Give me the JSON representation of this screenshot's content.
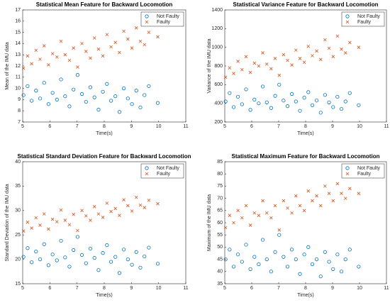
{
  "chart_data": [
    {
      "type": "scatter",
      "title": "Statistical Mean Feature for Backward Locomotion",
      "x_label": "Time(s)",
      "y_label": "Mean of the IMU data",
      "xlim": [
        5,
        11
      ],
      "xticks": [
        5,
        6,
        7,
        8,
        9,
        10,
        11
      ],
      "ylim": [
        7,
        17
      ],
      "yticks": [
        7,
        8,
        9,
        10,
        11,
        12,
        13,
        14,
        15,
        16,
        17
      ],
      "legend": "northeast",
      "series": [
        {
          "name": "Not Faulty",
          "color": "#0072BD",
          "marker": "o",
          "x": [
            5.03,
            5.18,
            5.33,
            5.49,
            5.64,
            5.79,
            5.95,
            6.1,
            6.26,
            6.41,
            6.56,
            6.72,
            6.87,
            7.02,
            7.18,
            7.33,
            7.49,
            7.64,
            7.79,
            7.95,
            8.1,
            8.25,
            8.41,
            8.56,
            8.72,
            8.87,
            9.02,
            9.18,
            9.33,
            9.48,
            9.64,
            9.97
          ],
          "values": [
            9.4,
            10.2,
            8.9,
            9.8,
            9.1,
            10.5,
            8.6,
            9.6,
            9.0,
            10.8,
            9.3,
            8.4,
            9.9,
            11.2,
            9.5,
            8.8,
            10.1,
            9.2,
            8.1,
            9.7,
            10.4,
            8.9,
            9.3,
            7.9,
            10.0,
            9.1,
            8.6,
            9.8,
            8.3,
            9.4,
            10.2,
            8.7
          ]
        },
        {
          "name": "Faulty",
          "color": "#D95319",
          "marker": "x",
          "x": [
            5.03,
            5.18,
            5.33,
            5.49,
            5.64,
            5.79,
            5.95,
            6.1,
            6.26,
            6.41,
            6.56,
            6.72,
            6.87,
            7.02,
            7.18,
            7.33,
            7.49,
            7.64,
            7.79,
            7.95,
            8.1,
            8.25,
            8.41,
            8.56,
            8.72,
            8.87,
            9.02,
            9.18,
            9.33,
            9.48,
            9.64,
            9.97
          ],
          "values": [
            11.8,
            12.9,
            12.2,
            13.4,
            12.6,
            13.8,
            12.1,
            13.1,
            12.8,
            14.2,
            13.0,
            12.5,
            13.6,
            11.9,
            14.0,
            13.3,
            12.7,
            14.5,
            13.5,
            12.9,
            14.8,
            13.7,
            14.1,
            13.2,
            15.1,
            14.4,
            13.6,
            15.4,
            14.2,
            13.9,
            15.0,
            14.6
          ]
        }
      ]
    },
    {
      "type": "scatter",
      "title": "Statistical Variance Feature for Backward Locomotion",
      "x_label": "Time(s)",
      "y_label": "Variance of the IMU data",
      "xlim": [
        5,
        11
      ],
      "xticks": [
        5,
        6,
        7,
        8,
        9,
        10,
        11
      ],
      "ylim": [
        200,
        1400
      ],
      "yticks": [
        200,
        400,
        600,
        800,
        1000,
        1200,
        1400
      ],
      "legend": "northeast",
      "series": [
        {
          "name": "Not Faulty",
          "color": "#0072BD",
          "marker": "o",
          "x": [
            5.03,
            5.18,
            5.33,
            5.49,
            5.64,
            5.79,
            5.95,
            6.1,
            6.26,
            6.41,
            6.56,
            6.72,
            6.87,
            7.02,
            7.18,
            7.33,
            7.49,
            7.64,
            7.79,
            7.95,
            8.1,
            8.25,
            8.41,
            8.56,
            8.72,
            8.87,
            9.02,
            9.18,
            9.33,
            9.48,
            9.64,
            9.97
          ],
          "values": [
            420,
            510,
            360,
            470,
            390,
            550,
            330,
            440,
            400,
            580,
            410,
            350,
            480,
            600,
            430,
            370,
            500,
            420,
            320,
            460,
            520,
            380,
            430,
            300,
            490,
            410,
            360,
            470,
            340,
            420,
            510,
            380
          ]
        },
        {
          "name": "Faulty",
          "color": "#D95319",
          "marker": "x",
          "x": [
            5.03,
            5.18,
            5.33,
            5.49,
            5.64,
            5.79,
            5.95,
            6.1,
            6.26,
            6.41,
            6.56,
            6.72,
            6.87,
            7.02,
            7.18,
            7.33,
            7.49,
            7.64,
            7.79,
            7.95,
            8.1,
            8.25,
            8.41,
            8.56,
            8.72,
            8.87,
            9.02,
            9.18,
            9.33,
            9.48,
            9.64,
            9.97
          ],
          "values": [
            680,
            780,
            720,
            850,
            760,
            900,
            730,
            830,
            800,
            940,
            820,
            770,
            880,
            700,
            920,
            860,
            810,
            970,
            880,
            840,
            1010,
            910,
            960,
            870,
            1080,
            990,
            900,
            1120,
            980,
            940,
            1050,
            1000
          ]
        }
      ]
    },
    {
      "type": "scatter",
      "title": "Statistical Standard Deviation Feature for Backward Locomotion",
      "x_label": "Time(s)",
      "y_label": "Standard Deviation of the IMU data",
      "xlim": [
        5,
        11
      ],
      "xticks": [
        5,
        6,
        7,
        8,
        9,
        10,
        11
      ],
      "ylim": [
        15,
        40
      ],
      "yticks": [
        15,
        20,
        25,
        30,
        35,
        40
      ],
      "legend": "northeast",
      "series": [
        {
          "name": "Not Faulty",
          "color": "#0072BD",
          "marker": "o",
          "x": [
            5.03,
            5.18,
            5.33,
            5.49,
            5.64,
            5.79,
            5.95,
            6.1,
            6.26,
            6.41,
            6.56,
            6.72,
            6.87,
            7.02,
            7.18,
            7.33,
            7.49,
            7.64,
            7.79,
            7.95,
            8.1,
            8.25,
            8.41,
            8.56,
            8.72,
            8.87,
            9.02,
            9.18,
            9.33,
            9.48,
            9.64,
            9.97
          ],
          "values": [
            20.5,
            22.3,
            19.4,
            21.6,
            20.0,
            23.1,
            18.8,
            21.0,
            19.8,
            23.8,
            20.4,
            18.5,
            21.9,
            24.6,
            20.9,
            19.2,
            22.2,
            20.3,
            17.8,
            21.3,
            22.9,
            19.5,
            20.5,
            17.2,
            22.0,
            20.0,
            18.9,
            21.5,
            18.3,
            20.6,
            22.4,
            19.1
          ]
        },
        {
          "name": "Faulty",
          "color": "#D95319",
          "marker": "x",
          "x": [
            5.03,
            5.18,
            5.33,
            5.49,
            5.64,
            5.79,
            5.95,
            6.1,
            6.26,
            6.41,
            6.56,
            6.72,
            6.87,
            7.02,
            7.18,
            7.33,
            7.49,
            7.64,
            7.79,
            7.95,
            8.1,
            8.25,
            8.41,
            8.56,
            8.72,
            8.87,
            9.02,
            9.18,
            9.33,
            9.48,
            9.64,
            9.97
          ],
          "values": [
            25.8,
            27.6,
            26.4,
            28.5,
            27.0,
            29.3,
            26.2,
            28.2,
            27.7,
            30.1,
            28.0,
            27.1,
            29.2,
            25.9,
            30.0,
            28.9,
            28.0,
            30.8,
            29.3,
            28.6,
            31.5,
            29.8,
            30.4,
            29.0,
            32.2,
            31.0,
            29.9,
            32.7,
            31.1,
            30.6,
            32.1,
            31.4
          ]
        }
      ]
    },
    {
      "type": "scatter",
      "title": "Statistical Maximum Feature for Backward Locomotion",
      "x_label": "Time(s)",
      "y_label": "Maximum of the IMU data",
      "xlim": [
        5,
        11
      ],
      "xticks": [
        5,
        6,
        7,
        8,
        9,
        10,
        11
      ],
      "ylim": [
        35,
        85
      ],
      "yticks": [
        35,
        40,
        45,
        50,
        55,
        60,
        65,
        70,
        75,
        80,
        85
      ],
      "legend": "northeast",
      "series": [
        {
          "name": "Not Faulty",
          "color": "#0072BD",
          "marker": "o",
          "x": [
            5.03,
            5.18,
            5.33,
            5.49,
            5.64,
            5.79,
            5.95,
            6.1,
            6.26,
            6.41,
            6.56,
            6.72,
            6.87,
            7.02,
            7.18,
            7.33,
            7.49,
            7.64,
            7.79,
            7.95,
            8.1,
            8.25,
            8.41,
            8.56,
            8.72,
            8.87,
            9.02,
            9.18,
            9.33,
            9.48,
            9.64,
            9.97
          ],
          "values": [
            45,
            49,
            42,
            47,
            44,
            51,
            41,
            46,
            43,
            53,
            45,
            40,
            48,
            55,
            46,
            42,
            49,
            45,
            39,
            47,
            50,
            43,
            45,
            38,
            48,
            44,
            41,
            47,
            40,
            45,
            49,
            42
          ]
        },
        {
          "name": "Faulty",
          "color": "#D95319",
          "marker": "x",
          "x": [
            5.03,
            5.18,
            5.33,
            5.49,
            5.64,
            5.79,
            5.95,
            6.1,
            6.26,
            6.41,
            6.56,
            6.72,
            6.87,
            7.02,
            7.18,
            7.33,
            7.49,
            7.64,
            7.79,
            7.95,
            8.1,
            8.25,
            8.41,
            8.56,
            8.72,
            8.87,
            9.02,
            9.18,
            9.33,
            9.48,
            9.64,
            9.97
          ],
          "values": [
            58,
            63,
            60,
            65,
            62,
            67,
            59,
            64,
            63,
            69,
            64,
            62,
            67,
            57,
            69,
            66,
            64,
            71,
            67,
            65,
            73,
            69,
            71,
            67,
            75,
            72,
            69,
            76,
            72,
            70,
            74,
            72
          ]
        }
      ]
    }
  ]
}
